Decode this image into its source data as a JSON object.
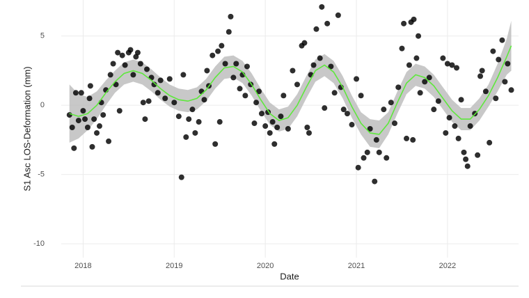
{
  "chart_data": {
    "type": "scatter",
    "x_label": "Date",
    "y_label": "S1 Asc LOS-Deformation (mm)",
    "xlim": [
      2017.76,
      2022.78
    ],
    "ylim": [
      -11,
      7.6
    ],
    "xticks": [
      2018,
      2019,
      2020,
      2021,
      2022
    ],
    "yticks": [
      -10,
      -5,
      0,
      5
    ],
    "grid": true,
    "point_color": "#000000",
    "x": [
      2017.85,
      2017.88,
      2017.9,
      2017.92,
      2017.95,
      2017.98,
      2018.0,
      2018.02,
      2018.05,
      2018.07,
      2018.08,
      2018.1,
      2018.12,
      2018.15,
      2018.18,
      2018.2,
      2018.22,
      2018.25,
      2018.28,
      2018.3,
      2018.33,
      2018.36,
      2018.38,
      2018.4,
      2018.43,
      2018.46,
      2018.5,
      2018.52,
      2018.55,
      2018.58,
      2018.6,
      2018.63,
      2018.66,
      2018.68,
      2018.7,
      2018.72,
      2018.75,
      2018.78,
      2018.82,
      2018.85,
      2018.9,
      2018.95,
      2019.0,
      2019.05,
      2019.08,
      2019.1,
      2019.13,
      2019.16,
      2019.2,
      2019.23,
      2019.27,
      2019.3,
      2019.33,
      2019.36,
      2019.38,
      2019.42,
      2019.45,
      2019.48,
      2019.5,
      2019.52,
      2019.56,
      2019.6,
      2019.62,
      2019.65,
      2019.68,
      2019.72,
      2019.75,
      2019.78,
      2019.8,
      2019.84,
      2019.88,
      2019.9,
      2019.93,
      2019.96,
      2020.0,
      2020.03,
      2020.05,
      2020.08,
      2020.1,
      2020.13,
      2020.17,
      2020.2,
      2020.25,
      2020.3,
      2020.35,
      2020.4,
      2020.43,
      2020.46,
      2020.48,
      2020.5,
      2020.53,
      2020.56,
      2020.6,
      2020.62,
      2020.65,
      2020.68,
      2020.72,
      2020.76,
      2020.8,
      2020.83,
      2020.86,
      2020.9,
      2020.95,
      2021.0,
      2021.02,
      2021.05,
      2021.08,
      2021.12,
      2021.15,
      2021.2,
      2021.22,
      2021.25,
      2021.3,
      2021.33,
      2021.38,
      2021.42,
      2021.46,
      2021.5,
      2021.52,
      2021.55,
      2021.58,
      2021.6,
      2021.62,
      2021.63,
      2021.66,
      2021.68,
      2021.7,
      2021.75,
      2021.8,
      2021.85,
      2021.9,
      2021.95,
      2021.98,
      2022.0,
      2022.02,
      2022.05,
      2022.08,
      2022.1,
      2022.12,
      2022.15,
      2022.18,
      2022.2,
      2022.22,
      2022.25,
      2022.3,
      2022.33,
      2022.36,
      2022.38,
      2022.42,
      2022.46,
      2022.5,
      2022.53,
      2022.56,
      2022.6,
      2022.63,
      2022.66,
      2022.7
    ],
    "values": [
      -0.7,
      -1.6,
      -3.1,
      0.9,
      -1.1,
      0.9,
      -0.4,
      -1.0,
      -1.6,
      0.5,
      1.4,
      -3.0,
      -1.0,
      -2.0,
      -1.5,
      0.2,
      -0.7,
      1.1,
      -2.6,
      2.2,
      3.0,
      1.5,
      3.8,
      -0.4,
      3.6,
      2.9,
      3.8,
      4.0,
      2.2,
      3.5,
      3.8,
      3.0,
      0.2,
      -1.0,
      2.6,
      0.3,
      2.0,
      1.5,
      0.9,
      1.8,
      0.5,
      1.9,
      0.2,
      -0.8,
      -5.2,
      2.2,
      -2.3,
      -1.0,
      -0.3,
      -2.0,
      -1.2,
      1.0,
      0.4,
      2.5,
      1.4,
      3.6,
      -2.8,
      3.9,
      -1.2,
      4.3,
      3.0,
      5.3,
      6.4,
      2.0,
      3.0,
      1.2,
      2.2,
      0.7,
      2.8,
      1.5,
      -1.3,
      0.2,
      1.0,
      -0.6,
      -1.5,
      -0.5,
      -2.0,
      -1.2,
      -2.8,
      -1.6,
      -0.8,
      0.7,
      -1.7,
      2.5,
      1.5,
      4.3,
      4.5,
      -1.6,
      -2.0,
      2.2,
      2.9,
      5.5,
      3.4,
      7.1,
      -0.2,
      5.9,
      2.8,
      0.9,
      6.5,
      1.3,
      -0.3,
      -0.6,
      -1.4,
      1.9,
      -4.5,
      0.7,
      -3.8,
      -3.4,
      -1.7,
      -5.5,
      -2.5,
      -3.4,
      -0.3,
      -3.8,
      0.2,
      -1.3,
      1.3,
      4.1,
      5.9,
      -2.4,
      2.9,
      6.0,
      -2.5,
      6.2,
      3.4,
      5.0,
      0.9,
      1.7,
      2.0,
      -0.3,
      0.3,
      3.4,
      -2.0,
      3.0,
      -0.9,
      2.9,
      -1.5,
      2.7,
      -2.4,
      0.4,
      -3.4,
      -3.9,
      -4.4,
      -1.5,
      -0.6,
      -3.6,
      2.1,
      2.5,
      1.0,
      -2.7,
      3.9,
      0.5,
      3.3,
      4.7,
      1.7,
      3.0,
      1.1
    ],
    "smooth": {
      "color": "#5ee83c",
      "band_color": "#bebebe",
      "x": [
        2017.85,
        2017.95,
        2018.05,
        2018.15,
        2018.25,
        2018.35,
        2018.45,
        2018.55,
        2018.65,
        2018.75,
        2018.85,
        2018.95,
        2019.05,
        2019.15,
        2019.25,
        2019.35,
        2019.45,
        2019.55,
        2019.65,
        2019.75,
        2019.85,
        2019.95,
        2020.05,
        2020.15,
        2020.25,
        2020.35,
        2020.45,
        2020.55,
        2020.65,
        2020.75,
        2020.85,
        2020.95,
        2021.05,
        2021.15,
        2021.25,
        2021.35,
        2021.45,
        2021.55,
        2021.65,
        2021.75,
        2021.85,
        2021.95,
        2022.05,
        2022.15,
        2022.25,
        2022.35,
        2022.45,
        2022.55,
        2022.65,
        2022.7
      ],
      "values": [
        -0.6,
        -0.8,
        -0.6,
        0.0,
        0.9,
        1.7,
        2.3,
        2.5,
        2.3,
        1.8,
        1.2,
        0.7,
        0.4,
        0.3,
        0.5,
        1.1,
        2.0,
        2.7,
        2.8,
        2.4,
        1.5,
        0.4,
        -0.6,
        -1.1,
        -0.9,
        0.0,
        1.3,
        2.5,
        2.9,
        2.4,
        1.3,
        -0.1,
        -1.3,
        -2.0,
        -2.1,
        -1.3,
        0.2,
        1.6,
        2.2,
        2.0,
        1.4,
        0.5,
        -0.4,
        -1.0,
        -1.0,
        -0.3,
        0.7,
        2.0,
        3.5,
        4.3
      ],
      "lower": [
        -2.7,
        -2.4,
        -1.8,
        -1.0,
        0.0,
        0.9,
        1.5,
        1.7,
        1.5,
        1.0,
        0.4,
        -0.1,
        -0.4,
        -0.5,
        -0.3,
        0.3,
        1.2,
        1.9,
        2.0,
        1.6,
        0.7,
        -0.4,
        -1.4,
        -1.9,
        -1.7,
        -0.8,
        0.5,
        1.7,
        2.1,
        1.6,
        0.5,
        -0.9,
        -2.1,
        -3.0,
        -3.1,
        -2.1,
        -0.6,
        0.8,
        1.4,
        1.2,
        0.6,
        -0.3,
        -1.2,
        -1.8,
        -1.8,
        -1.1,
        -0.1,
        1.0,
        2.2,
        2.5
      ],
      "upper": [
        1.5,
        0.8,
        0.6,
        1.0,
        1.8,
        2.5,
        3.1,
        3.3,
        3.1,
        2.6,
        2.0,
        1.5,
        1.2,
        1.1,
        1.3,
        1.9,
        2.8,
        3.5,
        3.6,
        3.2,
        2.3,
        1.2,
        0.2,
        -0.3,
        -0.1,
        0.8,
        2.1,
        3.3,
        3.7,
        3.2,
        2.1,
        0.7,
        -0.5,
        -1.0,
        -1.1,
        -0.5,
        1.0,
        2.4,
        3.0,
        2.8,
        2.2,
        1.3,
        0.4,
        -0.2,
        -0.2,
        0.5,
        1.5,
        3.0,
        4.8,
        6.1
      ]
    }
  }
}
